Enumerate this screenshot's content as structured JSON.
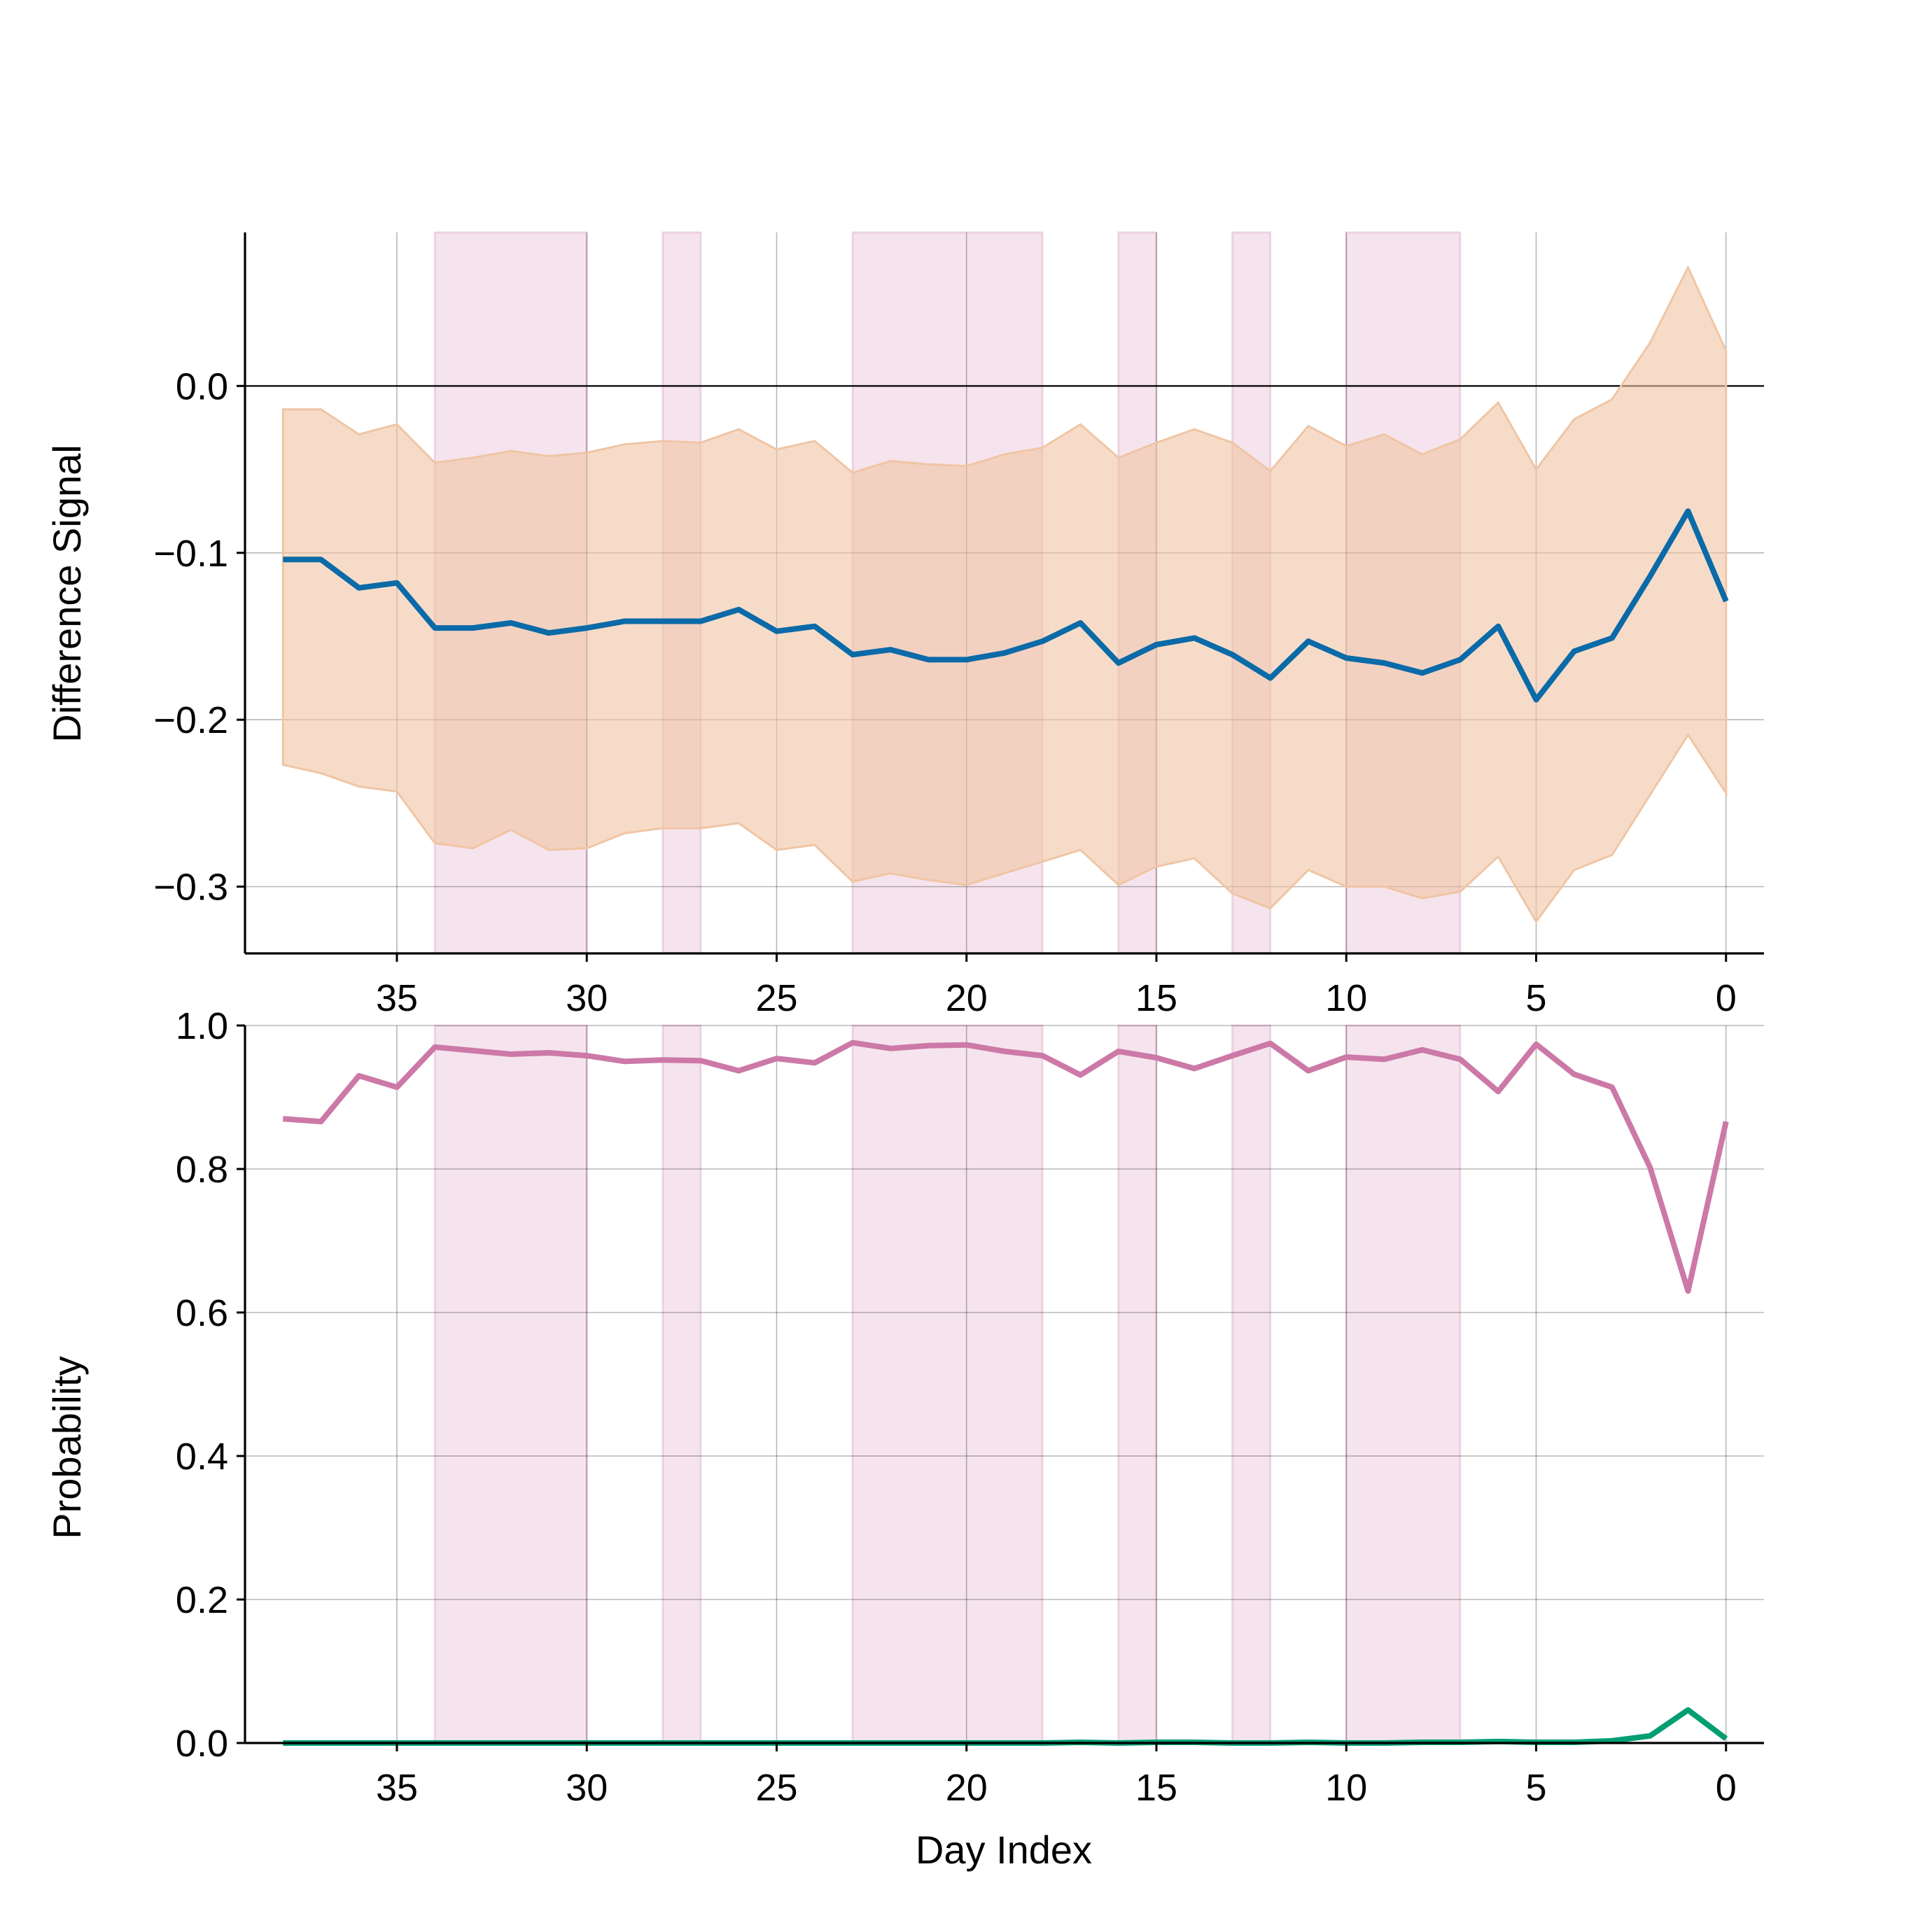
{
  "chart_data": [
    {
      "type": "line",
      "ylabel": "Difference Signal",
      "x_direction": "reversed",
      "xlim": [
        -1,
        39
      ],
      "ylim": [
        -0.34,
        0.092
      ],
      "xticks": [
        35,
        30,
        25,
        20,
        15,
        10,
        5,
        0
      ],
      "xtick_labels": [
        "35",
        "30",
        "25",
        "20",
        "15",
        "10",
        "5",
        "0"
      ],
      "yticks": [
        0.0,
        -0.1,
        -0.2,
        -0.3
      ],
      "ytick_labels": [
        "0.0",
        "−0.1",
        "−0.2",
        "−0.3"
      ],
      "grid": true,
      "reference_line": 0.0,
      "shaded_x_ranges": [
        [
          30,
          34
        ],
        [
          27,
          28
        ],
        [
          18,
          23
        ],
        [
          15,
          16
        ],
        [
          12,
          13
        ],
        [
          7,
          10
        ]
      ],
      "x": [
        38,
        37,
        36,
        35,
        34,
        33,
        32,
        31,
        30,
        29,
        28,
        27,
        26,
        25,
        24,
        23,
        22,
        21,
        20,
        19,
        18,
        17,
        16,
        15,
        14,
        13,
        12,
        11,
        10,
        9,
        8,
        7,
        6,
        5,
        4,
        3,
        2,
        1,
        0
      ],
      "series": [
        {
          "values": [
            -0.104,
            -0.104,
            -0.121,
            -0.118,
            -0.145,
            -0.145,
            -0.142,
            -0.148,
            -0.145,
            -0.141,
            -0.141,
            -0.141,
            -0.134,
            -0.147,
            -0.144,
            -0.161,
            -0.158,
            -0.164,
            -0.164,
            -0.16,
            -0.153,
            -0.142,
            -0.166,
            -0.155,
            -0.151,
            -0.161,
            -0.175,
            -0.153,
            -0.163,
            -0.166,
            -0.172,
            -0.164,
            -0.144,
            -0.188,
            -0.159,
            -0.151,
            -0.114,
            -0.075,
            -0.129
          ],
          "upper": [
            -0.014,
            -0.014,
            -0.029,
            -0.023,
            -0.046,
            -0.043,
            -0.039,
            -0.042,
            -0.04,
            -0.035,
            -0.033,
            -0.034,
            -0.026,
            -0.038,
            -0.033,
            -0.052,
            -0.045,
            -0.047,
            -0.048,
            -0.041,
            -0.037,
            -0.023,
            -0.043,
            -0.034,
            -0.026,
            -0.034,
            -0.051,
            -0.024,
            -0.036,
            -0.029,
            -0.041,
            -0.032,
            -0.01,
            -0.05,
            -0.02,
            -0.008,
            0.026,
            0.071,
            0.021
          ],
          "lower": [
            -0.227,
            -0.232,
            -0.24,
            -0.243,
            -0.274,
            -0.277,
            -0.266,
            -0.278,
            -0.277,
            -0.268,
            -0.265,
            -0.265,
            -0.262,
            -0.278,
            -0.275,
            -0.297,
            -0.292,
            -0.296,
            -0.299,
            -0.292,
            -0.285,
            -0.278,
            -0.299,
            -0.288,
            -0.283,
            -0.304,
            -0.313,
            -0.29,
            -0.3,
            -0.3,
            -0.307,
            -0.303,
            -0.282,
            -0.321,
            -0.29,
            -0.281,
            -0.245,
            -0.209,
            -0.244
          ],
          "color": "#0b6aa8",
          "band_color": "#f0c5a4"
        }
      ]
    },
    {
      "type": "line",
      "xlabel": "Day Index",
      "ylabel": "Probability",
      "x_direction": "reversed",
      "xlim": [
        -1,
        39
      ],
      "ylim": [
        0.0,
        1.0
      ],
      "xticks": [
        35,
        30,
        25,
        20,
        15,
        10,
        5,
        0
      ],
      "xtick_labels": [
        "35",
        "30",
        "25",
        "20",
        "15",
        "10",
        "5",
        "0"
      ],
      "yticks": [
        0.0,
        0.2,
        0.4,
        0.6,
        0.8,
        1.0
      ],
      "ytick_labels": [
        "0.0",
        "0.2",
        "0.4",
        "0.6",
        "0.8",
        "1.0"
      ],
      "grid": true,
      "shaded_x_ranges": [
        [
          30,
          34
        ],
        [
          27,
          28
        ],
        [
          18,
          23
        ],
        [
          15,
          16
        ],
        [
          12,
          13
        ],
        [
          7,
          10
        ]
      ],
      "x": [
        38,
        37,
        36,
        35,
        34,
        33,
        32,
        31,
        30,
        29,
        28,
        27,
        26,
        25,
        24,
        23,
        22,
        21,
        20,
        19,
        18,
        17,
        16,
        15,
        14,
        13,
        12,
        11,
        10,
        9,
        8,
        7,
        6,
        5,
        4,
        3,
        2,
        1,
        0
      ],
      "series": [
        {
          "values": [
            0.87,
            0.866,
            0.93,
            0.914,
            0.97,
            0.965,
            0.96,
            0.962,
            0.958,
            0.95,
            0.952,
            0.951,
            0.937,
            0.954,
            0.948,
            0.976,
            0.968,
            0.972,
            0.973,
            0.964,
            0.958,
            0.931,
            0.964,
            0.955,
            0.94,
            0.958,
            0.975,
            0.937,
            0.956,
            0.953,
            0.966,
            0.953,
            0.908,
            0.974,
            0.932,
            0.914,
            0.802,
            0.63,
            0.866
          ],
          "color": "#cc79a7"
        },
        {
          "values": [
            0.0,
            0.0,
            0.0,
            0.0,
            0.0,
            0.0,
            0.0,
            0.0,
            0.0,
            0.0,
            0.0,
            0.0,
            0.0,
            0.0,
            0.0,
            0.0,
            0.0,
            0.0,
            0.0,
            0.0,
            0.0,
            0.001,
            0.0,
            0.001,
            0.001,
            0.0,
            0.0,
            0.001,
            0.0,
            0.0,
            0.001,
            0.001,
            0.002,
            0.001,
            0.001,
            0.003,
            0.01,
            0.046,
            0.006
          ],
          "color": "#009e73"
        }
      ]
    }
  ]
}
